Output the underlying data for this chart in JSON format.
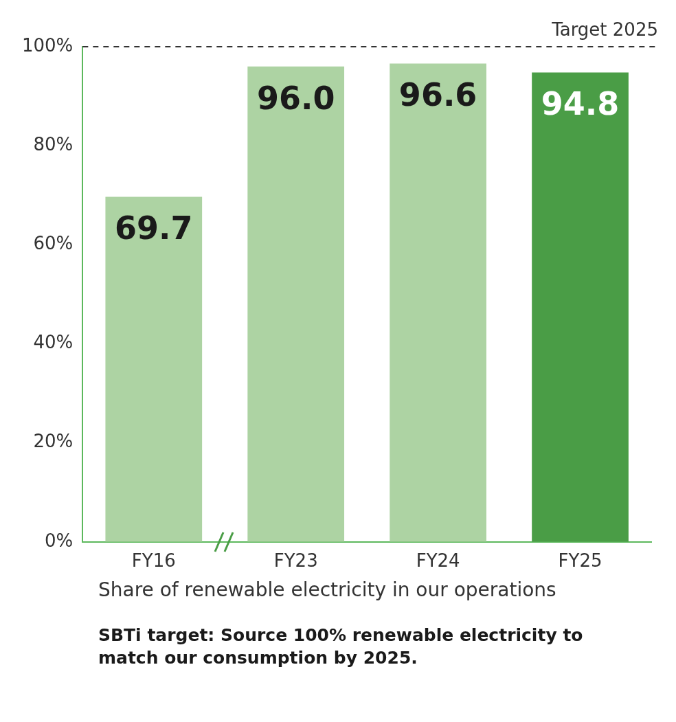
{
  "chart_data": {
    "type": "bar",
    "categories": [
      "FY16",
      "FY23",
      "FY24",
      "FY25"
    ],
    "values": [
      69.7,
      96.0,
      96.6,
      94.8
    ],
    "colors": [
      "#add3a3",
      "#add3a3",
      "#add3a3",
      "#4a9d46"
    ],
    "ylim": [
      0,
      100
    ],
    "yticks": [
      {
        "value": 0,
        "label": "0%"
      },
      {
        "value": 20,
        "label": "20%"
      },
      {
        "value": 40,
        "label": "40%"
      },
      {
        "value": 60,
        "label": "60%"
      },
      {
        "value": 80,
        "label": "80%"
      },
      {
        "value": 100,
        "label": "100%"
      }
    ],
    "value_labels": [
      "69.7",
      "96.0",
      "96.6",
      "94.8"
    ],
    "grid": false,
    "legend": false,
    "ref_lines": [
      {
        "axis": "y",
        "value": 100,
        "label": "Target 2025",
        "color": "#333333",
        "line_style": "dashed"
      }
    ],
    "xlabel": "Share of renewable electricity in our operations",
    "annotations": [
      "SBTi target: Source 100% renewable electricity to match our consumption by 2025."
    ]
  }
}
